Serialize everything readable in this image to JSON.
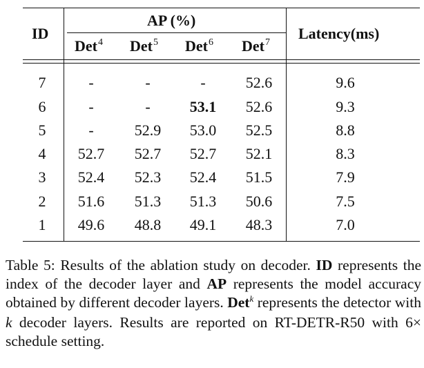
{
  "table": {
    "id_header": "ID",
    "ap_header": "AP (%)",
    "latency_header": "Latency(ms)",
    "det_label": "Det",
    "det_superscripts": [
      "4",
      "5",
      "6",
      "7"
    ],
    "rows": [
      {
        "id": "7",
        "det4": "-",
        "det5": "-",
        "det6": "-",
        "det7": "52.6",
        "latency": "9.6"
      },
      {
        "id": "6",
        "det4": "-",
        "det5": "-",
        "det6": "53.1",
        "det7": "52.6",
        "latency": "9.3"
      },
      {
        "id": "5",
        "det4": "-",
        "det5": "52.9",
        "det6": "53.0",
        "det7": "52.5",
        "latency": "8.8"
      },
      {
        "id": "4",
        "det4": "52.7",
        "det5": "52.7",
        "det6": "52.7",
        "det7": "52.1",
        "latency": "8.3"
      },
      {
        "id": "3",
        "det4": "52.4",
        "det5": "52.3",
        "det6": "52.4",
        "det7": "51.5",
        "latency": "7.9"
      },
      {
        "id": "2",
        "det4": "51.6",
        "det5": "51.3",
        "det6": "51.3",
        "det7": "50.6",
        "latency": "7.5"
      },
      {
        "id": "1",
        "det4": "49.6",
        "det5": "48.8",
        "det6": "49.1",
        "det7": "48.3",
        "latency": "7.0"
      }
    ],
    "bold_cell": "53.1"
  },
  "caption": {
    "part1": "Table 5: Results of the ablation study on decoder. ",
    "id_bold": "ID",
    "part2": " represents the index of the decoder layer and ",
    "ap_bold": "AP",
    "part3": " represents the model accuracy obtained by different decoder layers. ",
    "det_bold": "Det",
    "det_sup": "k",
    "part4": " represents the detector with ",
    "k_italic": "k",
    "part5": " decoder layers. Results are reported on RT-DETR-R50 with 6× schedule setting."
  }
}
